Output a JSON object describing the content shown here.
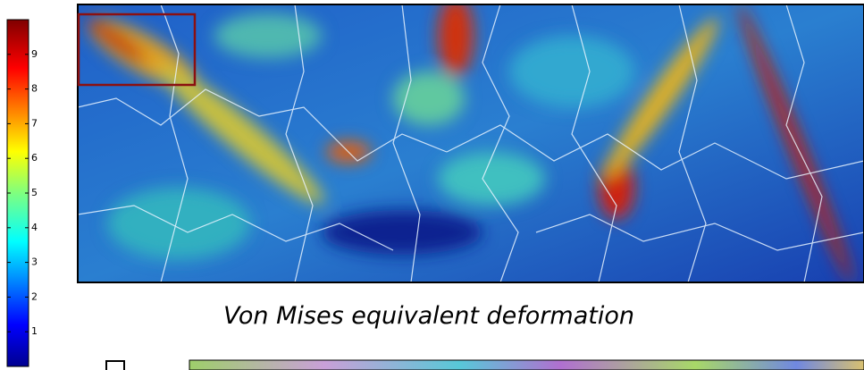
{
  "colorbar": {
    "range": [
      0,
      10
    ],
    "ticks": [
      1,
      2,
      3,
      4,
      5,
      6,
      7,
      8,
      9
    ]
  },
  "caption": "Von Mises equivalent deformation"
}
